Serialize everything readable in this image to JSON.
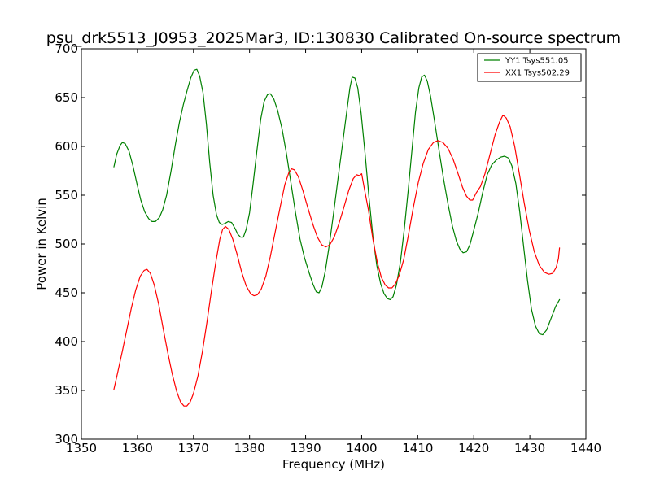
{
  "chart_data": {
    "type": "line",
    "title": "psu_drk5513_J0953_2025Mar3, ID:130830 Calibrated On-source spectrum",
    "xlabel": "Frequency (MHz)",
    "ylabel": "Power in Kelvin",
    "xlim": [
      1350,
      1440
    ],
    "ylim": [
      300,
      700
    ],
    "xticks": [
      1350,
      1360,
      1370,
      1380,
      1390,
      1400,
      1410,
      1420,
      1430,
      1440
    ],
    "yticks": [
      300,
      350,
      400,
      450,
      500,
      550,
      600,
      650,
      700
    ],
    "grid": false,
    "legend_position": "top-right",
    "series": [
      {
        "name": "YY1 Tsys551.05",
        "color": "#008000",
        "points": [
          [
            1355.8,
            579
          ],
          [
            1356.3,
            592
          ],
          [
            1356.9,
            601
          ],
          [
            1357.3,
            604
          ],
          [
            1357.8,
            603
          ],
          [
            1358.5,
            595
          ],
          [
            1359.2,
            580
          ],
          [
            1359.9,
            562
          ],
          [
            1360.6,
            545
          ],
          [
            1361.3,
            533
          ],
          [
            1362.0,
            526
          ],
          [
            1362.6,
            523
          ],
          [
            1363.2,
            523
          ],
          [
            1363.9,
            527
          ],
          [
            1364.5,
            535
          ],
          [
            1365.2,
            550
          ],
          [
            1366.0,
            575
          ],
          [
            1366.8,
            603
          ],
          [
            1367.5,
            625
          ],
          [
            1368.2,
            643
          ],
          [
            1368.9,
            658
          ],
          [
            1369.5,
            670
          ],
          [
            1370.1,
            678
          ],
          [
            1370.6,
            679
          ],
          [
            1371.1,
            672
          ],
          [
            1371.7,
            655
          ],
          [
            1372.3,
            623
          ],
          [
            1372.9,
            583
          ],
          [
            1373.5,
            550
          ],
          [
            1374.1,
            530
          ],
          [
            1374.6,
            522
          ],
          [
            1375.1,
            520
          ],
          [
            1375.6,
            521
          ],
          [
            1376.2,
            523
          ],
          [
            1376.8,
            522
          ],
          [
            1377.4,
            516
          ],
          [
            1377.9,
            510
          ],
          [
            1378.4,
            507
          ],
          [
            1378.9,
            507
          ],
          [
            1379.4,
            515
          ],
          [
            1380.0,
            532
          ],
          [
            1380.6,
            560
          ],
          [
            1381.3,
            595
          ],
          [
            1382.0,
            628
          ],
          [
            1382.6,
            646
          ],
          [
            1383.2,
            653
          ],
          [
            1383.7,
            654
          ],
          [
            1384.3,
            649
          ],
          [
            1385.0,
            637
          ],
          [
            1385.8,
            618
          ],
          [
            1386.6,
            592
          ],
          [
            1387.4,
            562
          ],
          [
            1388.2,
            532
          ],
          [
            1389.0,
            505
          ],
          [
            1389.8,
            486
          ],
          [
            1390.6,
            471
          ],
          [
            1391.3,
            459
          ],
          [
            1391.9,
            451
          ],
          [
            1392.4,
            450
          ],
          [
            1392.9,
            456
          ],
          [
            1393.5,
            472
          ],
          [
            1394.2,
            498
          ],
          [
            1395.0,
            532
          ],
          [
            1395.8,
            568
          ],
          [
            1396.6,
            603
          ],
          [
            1397.3,
            634
          ],
          [
            1397.9,
            660
          ],
          [
            1398.3,
            671
          ],
          [
            1398.8,
            670
          ],
          [
            1399.3,
            660
          ],
          [
            1399.9,
            634
          ],
          [
            1400.6,
            593
          ],
          [
            1401.3,
            548
          ],
          [
            1402.0,
            508
          ],
          [
            1402.7,
            478
          ],
          [
            1403.4,
            459
          ],
          [
            1404.0,
            449
          ],
          [
            1404.6,
            444
          ],
          [
            1405.1,
            443
          ],
          [
            1405.6,
            446
          ],
          [
            1406.2,
            458
          ],
          [
            1406.9,
            481
          ],
          [
            1407.6,
            515
          ],
          [
            1408.3,
            555
          ],
          [
            1409.0,
            598
          ],
          [
            1409.6,
            635
          ],
          [
            1410.2,
            660
          ],
          [
            1410.7,
            671
          ],
          [
            1411.2,
            673
          ],
          [
            1411.7,
            667
          ],
          [
            1412.3,
            651
          ],
          [
            1413.0,
            626
          ],
          [
            1413.8,
            596
          ],
          [
            1414.6,
            567
          ],
          [
            1415.4,
            541
          ],
          [
            1416.2,
            518
          ],
          [
            1416.9,
            503
          ],
          [
            1417.5,
            495
          ],
          [
            1418.1,
            491
          ],
          [
            1418.7,
            492
          ],
          [
            1419.3,
            499
          ],
          [
            1420.0,
            514
          ],
          [
            1420.8,
            532
          ],
          [
            1421.6,
            553
          ],
          [
            1422.4,
            571
          ],
          [
            1423.2,
            581
          ],
          [
            1424.0,
            586
          ],
          [
            1424.8,
            589
          ],
          [
            1425.5,
            590
          ],
          [
            1426.2,
            588
          ],
          [
            1426.8,
            580
          ],
          [
            1427.5,
            562
          ],
          [
            1428.2,
            533
          ],
          [
            1428.9,
            497
          ],
          [
            1429.6,
            462
          ],
          [
            1430.3,
            433
          ],
          [
            1431.0,
            416
          ],
          [
            1431.7,
            408
          ],
          [
            1432.3,
            407
          ],
          [
            1433.0,
            412
          ],
          [
            1433.8,
            424
          ],
          [
            1434.6,
            436
          ],
          [
            1435.3,
            443
          ]
        ]
      },
      {
        "name": "XX1 Tsys502.29",
        "color": "#ff0000",
        "points": [
          [
            1355.8,
            351
          ],
          [
            1356.5,
            369
          ],
          [
            1357.3,
            390
          ],
          [
            1358.1,
            412
          ],
          [
            1358.9,
            434
          ],
          [
            1359.7,
            453
          ],
          [
            1360.5,
            467
          ],
          [
            1361.2,
            473
          ],
          [
            1361.7,
            474
          ],
          [
            1362.3,
            470
          ],
          [
            1363.0,
            458
          ],
          [
            1363.8,
            438
          ],
          [
            1364.6,
            413
          ],
          [
            1365.4,
            389
          ],
          [
            1366.2,
            367
          ],
          [
            1367.0,
            349
          ],
          [
            1367.7,
            338
          ],
          [
            1368.3,
            334
          ],
          [
            1368.8,
            334
          ],
          [
            1369.4,
            338
          ],
          [
            1370.0,
            347
          ],
          [
            1370.8,
            365
          ],
          [
            1371.6,
            390
          ],
          [
            1372.4,
            420
          ],
          [
            1373.2,
            452
          ],
          [
            1374.0,
            482
          ],
          [
            1374.7,
            505
          ],
          [
            1375.2,
            515
          ],
          [
            1375.7,
            518
          ],
          [
            1376.3,
            515
          ],
          [
            1377.0,
            505
          ],
          [
            1377.8,
            489
          ],
          [
            1378.6,
            471
          ],
          [
            1379.4,
            457
          ],
          [
            1380.2,
            449
          ],
          [
            1380.8,
            447
          ],
          [
            1381.4,
            448
          ],
          [
            1382.1,
            454
          ],
          [
            1382.9,
            467
          ],
          [
            1383.7,
            487
          ],
          [
            1384.6,
            513
          ],
          [
            1385.5,
            539
          ],
          [
            1386.3,
            561
          ],
          [
            1387.0,
            573
          ],
          [
            1387.5,
            577
          ],
          [
            1388.0,
            576
          ],
          [
            1388.7,
            569
          ],
          [
            1389.5,
            555
          ],
          [
            1390.4,
            537
          ],
          [
            1391.3,
            520
          ],
          [
            1392.1,
            507
          ],
          [
            1392.9,
            499
          ],
          [
            1393.6,
            497
          ],
          [
            1394.3,
            499
          ],
          [
            1395.1,
            507
          ],
          [
            1395.9,
            520
          ],
          [
            1396.8,
            537
          ],
          [
            1397.7,
            555
          ],
          [
            1398.5,
            567
          ],
          [
            1399.1,
            571
          ],
          [
            1399.6,
            570
          ],
          [
            1400.0,
            572
          ],
          [
            1400.5,
            556
          ],
          [
            1401.2,
            535
          ],
          [
            1402.0,
            505
          ],
          [
            1402.8,
            481
          ],
          [
            1403.5,
            466
          ],
          [
            1404.2,
            458
          ],
          [
            1404.8,
            455
          ],
          [
            1405.4,
            455
          ],
          [
            1406.0,
            459
          ],
          [
            1406.7,
            468
          ],
          [
            1407.5,
            484
          ],
          [
            1408.3,
            508
          ],
          [
            1409.2,
            537
          ],
          [
            1410.1,
            563
          ],
          [
            1411.0,
            583
          ],
          [
            1411.9,
            597
          ],
          [
            1412.8,
            604
          ],
          [
            1413.6,
            606
          ],
          [
            1414.5,
            604
          ],
          [
            1415.4,
            598
          ],
          [
            1416.3,
            587
          ],
          [
            1417.2,
            572
          ],
          [
            1418.0,
            558
          ],
          [
            1418.7,
            549
          ],
          [
            1419.3,
            545
          ],
          [
            1419.8,
            545
          ],
          [
            1420.4,
            552
          ],
          [
            1421.2,
            559
          ],
          [
            1422.0,
            572
          ],
          [
            1422.9,
            592
          ],
          [
            1423.8,
            612
          ],
          [
            1424.6,
            625
          ],
          [
            1425.2,
            632
          ],
          [
            1425.8,
            629
          ],
          [
            1426.5,
            620
          ],
          [
            1427.3,
            600
          ],
          [
            1428.1,
            573
          ],
          [
            1429.0,
            542
          ],
          [
            1429.9,
            514
          ],
          [
            1430.8,
            492
          ],
          [
            1431.7,
            478
          ],
          [
            1432.6,
            471
          ],
          [
            1433.4,
            469
          ],
          [
            1434.1,
            470
          ],
          [
            1434.7,
            476
          ],
          [
            1435.1,
            485
          ],
          [
            1435.3,
            496
          ]
        ]
      }
    ]
  }
}
